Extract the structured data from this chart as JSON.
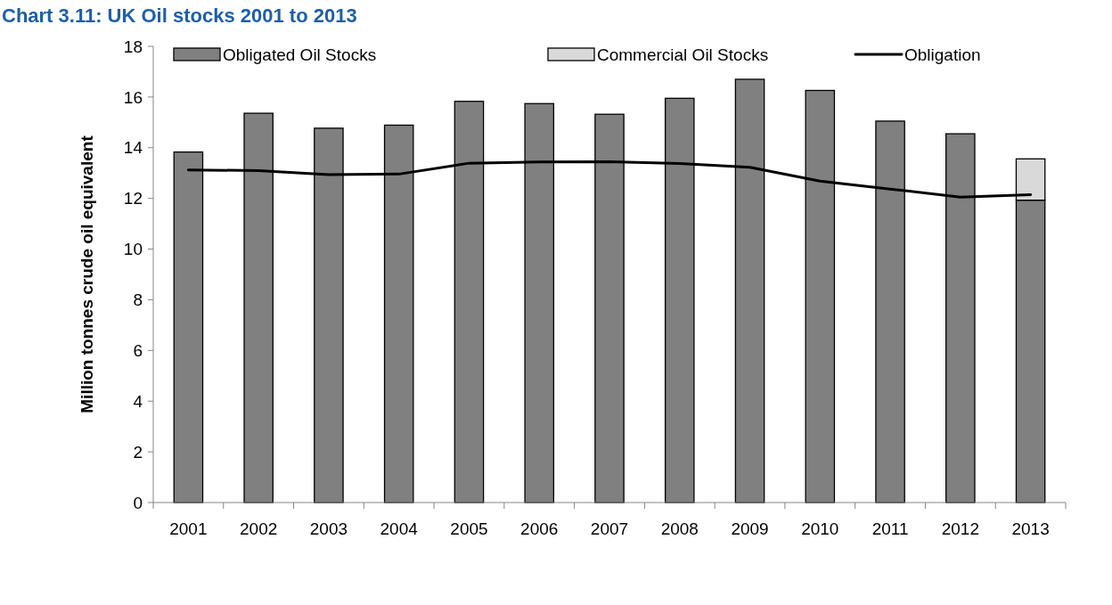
{
  "chart_data": {
    "type": "bar",
    "title": "Chart 3.11: UK Oil stocks 2001 to 2013",
    "ylabel": "Million tonnes crude oil equivalent",
    "categories": [
      "2001",
      "2002",
      "2003",
      "2004",
      "2005",
      "2006",
      "2007",
      "2008",
      "2009",
      "2010",
      "2011",
      "2012",
      "2013"
    ],
    "stacked": true,
    "series": [
      {
        "name": "Obligated Oil Stocks",
        "color": "#808080",
        "values": [
          13.83,
          15.36,
          14.77,
          14.89,
          15.83,
          15.74,
          15.32,
          15.95,
          16.7,
          16.26,
          15.05,
          14.55,
          11.93
        ]
      },
      {
        "name": "Commercial Oil Stocks",
        "color": "#d9d9d9",
        "values": [
          null,
          null,
          null,
          null,
          null,
          null,
          null,
          null,
          null,
          null,
          null,
          null,
          1.63
        ]
      },
      {
        "name": "Obligation",
        "type": "line",
        "color": "#000000",
        "values": [
          13.12,
          13.1,
          12.94,
          12.96,
          13.39,
          13.44,
          13.45,
          13.38,
          13.23,
          12.68,
          12.37,
          12.05,
          12.15
        ]
      }
    ],
    "ylim": [
      0,
      18
    ],
    "yticks": [
      0,
      2,
      4,
      6,
      8,
      10,
      12,
      14,
      16,
      18
    ],
    "grid": false,
    "legend": "top",
    "marker": "none"
  }
}
